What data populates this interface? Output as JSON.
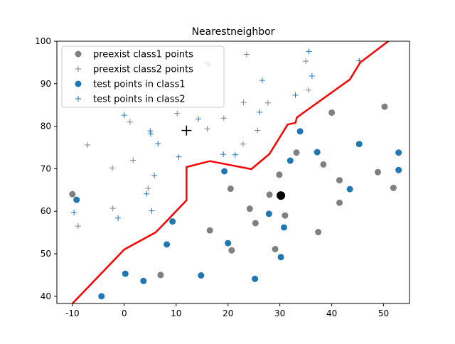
{
  "chart_data": {
    "type": "scatter",
    "title": "Nearestneighbor",
    "xlabel": "",
    "ylabel": "",
    "xlim": [
      -13,
      55
    ],
    "ylim": [
      38.3,
      100
    ],
    "xticks": [
      -10,
      0,
      10,
      20,
      30,
      40,
      50
    ],
    "yticks": [
      40,
      50,
      60,
      70,
      80,
      90,
      100
    ],
    "grid": false,
    "legend": "top-left",
    "colors": {
      "class1_preexist": "#808080",
      "class2_preexist": "#808080",
      "class1_test": "#1f77b4",
      "class2_test": "#1f77b4",
      "boundary": "#ff0000",
      "query": "#000000"
    },
    "series": [
      {
        "name": "preexist class1 points",
        "marker": "circle",
        "color": "#808080",
        "points": [
          [
            -10,
            64
          ],
          [
            7,
            45
          ],
          [
            16.5,
            55.5
          ],
          [
            20.5,
            65.3
          ],
          [
            20.7,
            50.8
          ],
          [
            24.2,
            60.6
          ],
          [
            25.3,
            57.2
          ],
          [
            28,
            63.9
          ],
          [
            29.1,
            51.1
          ],
          [
            29.9,
            68.6
          ],
          [
            31,
            59
          ],
          [
            33.2,
            73.8
          ],
          [
            37.4,
            55.1
          ],
          [
            38.4,
            71
          ],
          [
            40,
            83.2
          ],
          [
            41.5,
            67.3
          ],
          [
            41.5,
            62
          ],
          [
            48.9,
            69.2
          ],
          [
            50.2,
            84.6
          ],
          [
            51.9,
            65.5
          ]
        ]
      },
      {
        "name": "preexist class2 points",
        "marker": "plus",
        "color": "#808080",
        "points": [
          [
            -10.1,
            64.1
          ],
          [
            -8.9,
            56.5
          ],
          [
            -7.1,
            75.6
          ],
          [
            -2.3,
            70.2
          ],
          [
            -2.2,
            60.7
          ],
          [
            1.1,
            81
          ],
          [
            1.7,
            72
          ],
          [
            4.6,
            65.4
          ],
          [
            10.2,
            83
          ],
          [
            15.9,
            94.8
          ],
          [
            16,
            79.4
          ],
          [
            19.2,
            81.9
          ],
          [
            22.9,
            75.8
          ],
          [
            23,
            85.6
          ],
          [
            23.6,
            96.9
          ],
          [
            25.7,
            79
          ],
          [
            27.7,
            85.5
          ],
          [
            35,
            95.3
          ],
          [
            35.5,
            88.5
          ]
        ]
      },
      {
        "name": "test points in class1",
        "marker": "circle",
        "color": "#1f77b4",
        "points": [
          [
            -9.2,
            62.7
          ],
          [
            -4.4,
            40
          ],
          [
            0.2,
            45.3
          ],
          [
            3.7,
            43.6
          ],
          [
            8.2,
            52.2
          ],
          [
            9.3,
            57.6
          ],
          [
            14.8,
            44.9
          ],
          [
            19.3,
            69.4
          ],
          [
            20,
            52.5
          ],
          [
            25.2,
            44.1
          ],
          [
            27.9,
            59.4
          ],
          [
            30.2,
            49.2
          ],
          [
            30.8,
            56.2
          ],
          [
            32,
            71.9
          ],
          [
            33.9,
            78.8
          ],
          [
            37.2,
            73.9
          ],
          [
            43.5,
            65.2
          ],
          [
            45.3,
            75.8
          ],
          [
            52.9,
            73.8
          ],
          [
            52.9,
            69.7
          ]
        ]
      },
      {
        "name": "test points in class2",
        "marker": "plus",
        "color": "#1f77b4",
        "points": [
          [
            -9.7,
            59.7
          ],
          [
            -1.2,
            58.4
          ],
          [
            0,
            82.6
          ],
          [
            5,
            78.9
          ],
          [
            5.1,
            78.2
          ],
          [
            5.3,
            60.1
          ],
          [
            5.8,
            68.4
          ],
          [
            4.3,
            64.1
          ],
          [
            6.5,
            75.9
          ],
          [
            10.5,
            72.8
          ],
          [
            14.3,
            81.7
          ],
          [
            16.3,
            94.5
          ],
          [
            19.1,
            73.4
          ],
          [
            21.4,
            73.3
          ],
          [
            26.1,
            83.3
          ],
          [
            26.6,
            90.8
          ],
          [
            33,
            87.3
          ],
          [
            35.6,
            97.6
          ],
          [
            36.2,
            91.8
          ],
          [
            45.3,
            95.4
          ]
        ]
      }
    ],
    "query_points": [
      {
        "marker": "plus",
        "x": 12,
        "y": 79
      },
      {
        "marker": "circle",
        "x": 30.2,
        "y": 63.7
      }
    ],
    "boundary": [
      [
        -10,
        38.3
      ],
      [
        0,
        51
      ],
      [
        6,
        55
      ],
      [
        7,
        56.2
      ],
      [
        12,
        62.6
      ],
      [
        12,
        70.4
      ],
      [
        16.5,
        71.8
      ],
      [
        24.5,
        69.9
      ],
      [
        28,
        73.5
      ],
      [
        31.5,
        80.4
      ],
      [
        33,
        80.8
      ],
      [
        33.3,
        82.1
      ],
      [
        43.5,
        91
      ],
      [
        45.5,
        95
      ],
      [
        52,
        101
      ]
    ]
  }
}
